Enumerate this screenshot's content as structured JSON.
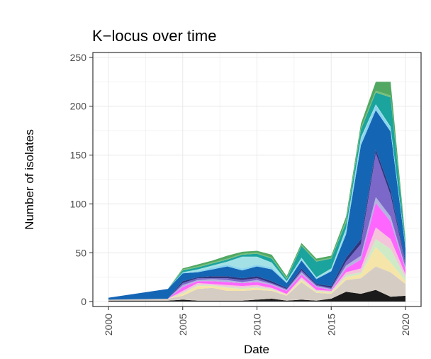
{
  "chart_data": {
    "type": "area",
    "title": "K−locus over time",
    "xlabel": "Date",
    "ylabel": "Number of isolates",
    "x": [
      2000,
      2004,
      2005,
      2006,
      2007,
      2008,
      2009,
      2010,
      2011,
      2012,
      2013,
      2014,
      2015,
      2016,
      2017,
      2018,
      2019,
      2020
    ],
    "xlim": [
      2000,
      2020
    ],
    "ylim": [
      -5,
      255
    ],
    "x_ticks": [
      "2000",
      "2005",
      "2010",
      "2015",
      "2020"
    ],
    "y_ticks": [
      "0",
      "50",
      "100",
      "150",
      "200",
      "250"
    ],
    "grid": true,
    "stacked": true,
    "legend": "none",
    "series": [
      {
        "color": "#1a1a1a",
        "values": [
          1,
          1,
          2,
          1,
          1,
          1,
          1,
          2,
          3,
          1,
          2,
          1,
          3,
          10,
          8,
          12,
          5,
          6
        ]
      },
      {
        "color": "#d5ccc4",
        "values": [
          1,
          2,
          4,
          12,
          13,
          10,
          10,
          10,
          8,
          5,
          18,
          8,
          5,
          12,
          16,
          24,
          25,
          12
        ]
      },
      {
        "color": "#f6e5a8",
        "values": [
          0,
          0,
          2,
          3,
          2,
          3,
          2,
          2,
          1,
          1,
          2,
          1,
          1,
          3,
          4,
          20,
          10,
          3
        ]
      },
      {
        "color": "#cfeac6",
        "values": [
          0,
          0,
          1,
          1,
          1,
          1,
          1,
          1,
          1,
          0,
          1,
          1,
          1,
          2,
          2,
          8,
          14,
          4
        ]
      },
      {
        "color": "#f4c4da",
        "values": [
          0,
          0,
          2,
          2,
          1,
          2,
          2,
          2,
          1,
          1,
          2,
          1,
          1,
          3,
          4,
          12,
          10,
          3
        ]
      },
      {
        "color": "#ff66ff",
        "values": [
          0,
          0,
          4,
          2,
          3,
          3,
          3,
          3,
          3,
          3,
          3,
          3,
          1,
          4,
          9,
          25,
          18,
          5
        ]
      },
      {
        "color": "#b3b3df",
        "values": [
          0,
          0,
          2,
          1,
          2,
          2,
          1,
          2,
          1,
          1,
          2,
          1,
          1,
          3,
          4,
          6,
          5,
          2
        ]
      },
      {
        "color": "#7b68c8",
        "values": [
          0,
          0,
          2,
          2,
          1,
          2,
          2,
          2,
          1,
          1,
          2,
          1,
          1,
          4,
          12,
          45,
          22,
          4
        ]
      },
      {
        "color": "#2f3680",
        "values": [
          0,
          0,
          2,
          1,
          2,
          2,
          2,
          2,
          2,
          1,
          2,
          1,
          2,
          4,
          5,
          4,
          5,
          2
        ]
      },
      {
        "color": "#1565b5",
        "values": [
          2,
          10,
          8,
          5,
          7,
          10,
          8,
          10,
          12,
          5,
          8,
          5,
          15,
          24,
          96,
          40,
          60,
          14
        ]
      },
      {
        "color": "#8bd5ee",
        "values": [
          0,
          0,
          1,
          1,
          2,
          2,
          2,
          2,
          2,
          1,
          2,
          1,
          1,
          4,
          6,
          5,
          4,
          2
        ]
      },
      {
        "color": "#a4e1e6",
        "values": [
          0,
          0,
          0,
          2,
          2,
          3,
          12,
          8,
          5,
          1,
          1,
          1,
          2,
          2,
          2,
          1,
          1,
          0
        ]
      },
      {
        "color": "#1ba39e",
        "values": [
          0,
          0,
          2,
          2,
          2,
          2,
          2,
          3,
          4,
          2,
          12,
          16,
          10,
          6,
          8,
          12,
          30,
          4
        ]
      },
      {
        "color": "#79bf7a",
        "values": [
          0,
          0,
          1,
          1,
          1,
          1,
          1,
          1,
          1,
          1,
          1,
          1,
          1,
          2,
          2,
          2,
          2,
          1
        ]
      },
      {
        "color": "#52a862",
        "values": [
          0,
          0,
          1,
          2,
          2,
          3,
          2,
          2,
          3,
          2,
          2,
          2,
          2,
          4,
          4,
          9,
          14,
          2
        ]
      }
    ]
  }
}
